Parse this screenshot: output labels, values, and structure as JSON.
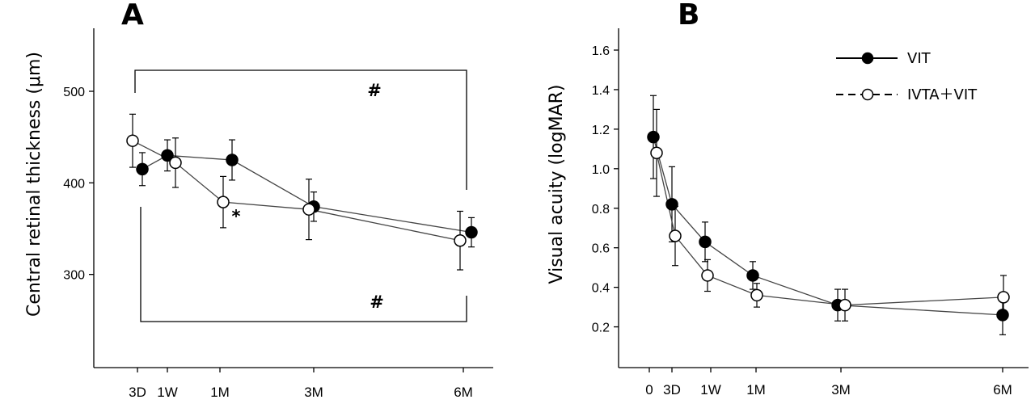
{
  "chart_data": [
    {
      "panel": "A",
      "type": "line",
      "ylabel": "Central retinal thickness (μm)",
      "ylim": [
        200,
        570
      ],
      "yticks": [
        300,
        400,
        500
      ],
      "categories": [
        "3D",
        "1W",
        "1M",
        "3M",
        "6M"
      ],
      "series": [
        {
          "style": "filled",
          "x": [
            "3D",
            "1W",
            "1M",
            "3M",
            "6M"
          ],
          "values": [
            415,
            430,
            425,
            374,
            346
          ],
          "err": [
            18,
            17,
            22,
            16,
            16
          ]
        },
        {
          "style": "open",
          "x": [
            "3D",
            "1W",
            "1M",
            "3M",
            "6M"
          ],
          "values": [
            446,
            422,
            379,
            371,
            337
          ],
          "err": [
            29,
            27,
            28,
            33,
            32
          ]
        }
      ],
      "annotations": {
        "top_bracket": "#",
        "bottom_bracket": "#",
        "asterisk": "*"
      }
    },
    {
      "panel": "B",
      "type": "line",
      "ylabel": "Visual acuity (logMAR)",
      "ylim": [
        0.0,
        1.75
      ],
      "yticks": [
        "0.2",
        "0.4",
        "0.6",
        "0.8",
        "1.0",
        "1.2",
        "1.4",
        "1.6"
      ],
      "categories": [
        "0",
        "3D",
        "1W",
        "1M",
        "3M",
        "6M"
      ],
      "series": [
        {
          "name": "VIT",
          "style": "filled",
          "x": [
            "0",
            "3D",
            "1W",
            "1M",
            "3M",
            "6M"
          ],
          "values": [
            1.16,
            0.82,
            0.63,
            0.46,
            0.31,
            0.26
          ],
          "err": [
            0.21,
            0.19,
            0.1,
            0.07,
            0.08,
            0.1
          ]
        },
        {
          "name": "IVTA + VIT",
          "style": "open",
          "x": [
            "0",
            "3D",
            "1W",
            "1M",
            "3M",
            "6M"
          ],
          "values": [
            1.08,
            0.66,
            0.46,
            0.36,
            0.31,
            0.35
          ],
          "err": [
            0.22,
            0.15,
            0.08,
            0.06,
            0.08,
            0.11
          ]
        }
      ],
      "legend": [
        {
          "label": "VIT",
          "line": "solid",
          "marker": "filled"
        },
        {
          "label": "IVTA＋VIT",
          "line": "dashed",
          "marker": "open"
        }
      ]
    }
  ]
}
